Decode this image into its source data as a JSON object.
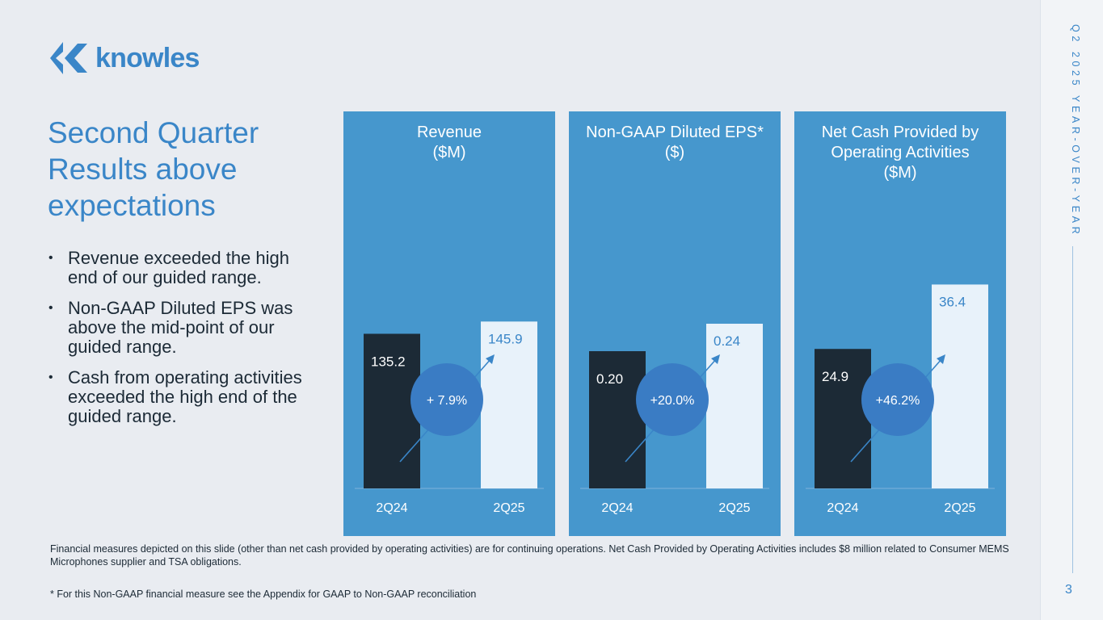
{
  "logo": {
    "text": "knowles"
  },
  "side": {
    "vertical_title": "Q2 2025 YEAR-OVER-YEAR",
    "page_number": "3"
  },
  "headline": [
    "Second Quarter",
    "Results above",
    "expectations"
  ],
  "bullets": [
    "Revenue exceeded the high end of our guided range.",
    "Non-GAAP Diluted EPS was above the mid-point of our guided range.",
    "Cash from operating activities exceeded the high end of the guided range."
  ],
  "footnotes": [
    "Financial measures depicted on this slide (other than net cash provided by operating activities) are for continuing operations.  Net Cash Provided by Operating Activities includes $8 million related to Consumer MEMS Microphones supplier and TSA obligations.",
    "* For this Non-GAAP financial measure see the Appendix for GAAP to Non-GAAP reconciliation"
  ],
  "colors": {
    "panel": "#4697cd",
    "bar_prior": "#1c2a36",
    "bar_current": "#e8f2fa",
    "badge": "#3a7cc4",
    "text_blue": "#3a86c8"
  },
  "chart_data": [
    {
      "type": "bar",
      "title": [
        "Revenue",
        "($M)"
      ],
      "categories": [
        "2Q24",
        "2Q25"
      ],
      "values": [
        135.2,
        145.9
      ],
      "labels": [
        "135.2",
        "145.9"
      ],
      "change": "+ 7.9%",
      "ylim": [
        0,
        240
      ]
    },
    {
      "type": "bar",
      "title": [
        "Non-GAAP Diluted EPS*",
        "($)"
      ],
      "categories": [
        "2Q24",
        "2Q25"
      ],
      "values": [
        0.2,
        0.24
      ],
      "labels": [
        "0.20",
        "0.24"
      ],
      "change": "+20.0%",
      "ylim": [
        0,
        0.4
      ]
    },
    {
      "type": "bar",
      "title": [
        "Net Cash Provided by",
        "Operating Activities",
        "($M)"
      ],
      "categories": [
        "2Q24",
        "2Q25"
      ],
      "values": [
        24.9,
        36.4
      ],
      "labels": [
        "24.9",
        "36.4"
      ],
      "change": "+46.2%",
      "ylim": [
        0,
        49
      ]
    }
  ]
}
